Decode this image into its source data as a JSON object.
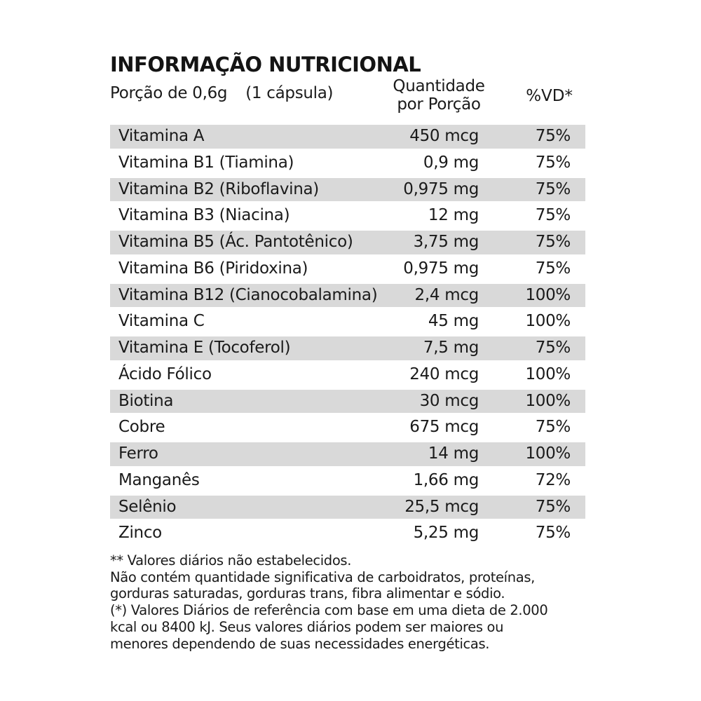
{
  "title": "INFORMAÇÃO NUTRICIONAL",
  "header": {
    "portion": "Porção de 0,6g",
    "capsule": "(1 cápsula)",
    "quantity_line1": "Quantidade",
    "quantity_line2": "por Porção",
    "vd": "%VD*"
  },
  "rows": [
    {
      "name": "Vitamina A",
      "amount": "450 mcg",
      "vd": "75%"
    },
    {
      "name": "Vitamina B1 (Tiamina)",
      "amount": "0,9 mg",
      "vd": "75%"
    },
    {
      "name": "Vitamina B2 (Riboflavina)",
      "amount": "0,975 mg",
      "vd": "75%"
    },
    {
      "name": "Vitamina B3 (Niacina)",
      "amount": "12 mg",
      "vd": "75%"
    },
    {
      "name": "Vitamina B5 (Ác. Pantotênico)",
      "amount": "3,75 mg",
      "vd": "75%"
    },
    {
      "name": "Vitamina B6 (Piridoxina)",
      "amount": "0,975 mg",
      "vd": "75%"
    },
    {
      "name": "Vitamina B12 (Cianocobalamina)",
      "amount": "2,4 mcg",
      "vd": "100%"
    },
    {
      "name": "Vitamina C",
      "amount": "45 mg",
      "vd": "100%"
    },
    {
      "name": "Vitamina E (Tocoferol)",
      "amount": "7,5 mg",
      "vd": "75%"
    },
    {
      "name": "Ácido Fólico",
      "amount": "240 mcg",
      "vd": "100%"
    },
    {
      "name": "Biotina",
      "amount": "30 mcg",
      "vd": "100%"
    },
    {
      "name": "Cobre",
      "amount": "675 mcg",
      "vd": "75%"
    },
    {
      "name": "Ferro",
      "amount": "14 mg",
      "vd": "100%"
    },
    {
      "name": "Manganês",
      "amount": "1,66 mg",
      "vd": "72%"
    },
    {
      "name": "Selênio",
      "amount": "25,5 mcg",
      "vd": "75%"
    },
    {
      "name": "Zinco",
      "amount": "5,25 mg",
      "vd": "75%"
    }
  ],
  "footnotes": [
    "** Valores  diários  não estabelecidos.",
    "Não contém quantidade significativa de carboidratos, proteínas,",
    "gorduras saturadas, gorduras trans, fibra alimentar e sódio.",
    "(*) Valores Diários de referência com base em uma dieta de 2.000",
    "kcal ou 8400 kJ. Seus valores diários podem ser maiores ou",
    "menores dependendo de suas necessidades energéticas."
  ],
  "colors": {
    "row_shade": "#d9d9d9",
    "text": "#1a1a1a",
    "background": "#ffffff"
  }
}
